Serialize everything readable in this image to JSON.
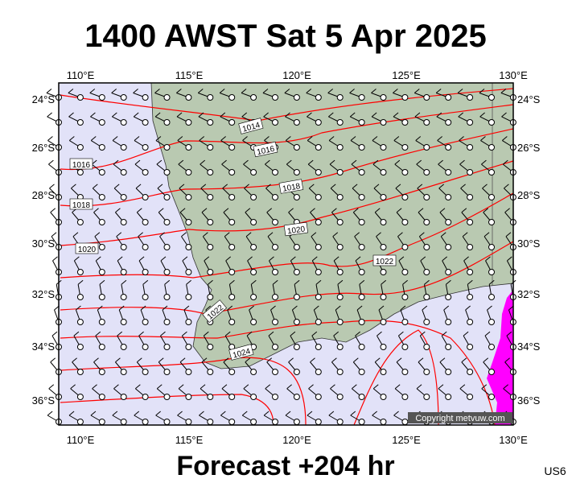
{
  "title": "1400 AWST Sat 5 Apr 2025",
  "footer": "Forecast +204 hr",
  "model": "US6",
  "copyright": "Copyright metvuw.com",
  "lon_labels": [
    "110°E",
    "115°E",
    "120°E",
    "125°E",
    "130°E"
  ],
  "lat_labels": [
    "24°S",
    "26°S",
    "28°S",
    "30°S",
    "32°S",
    "34°S",
    "36°S"
  ],
  "isobar_labels": [
    "1014",
    "1016",
    "1016",
    "1018",
    "1018",
    "1020",
    "1020",
    "1022",
    "1022",
    "1024"
  ]
}
